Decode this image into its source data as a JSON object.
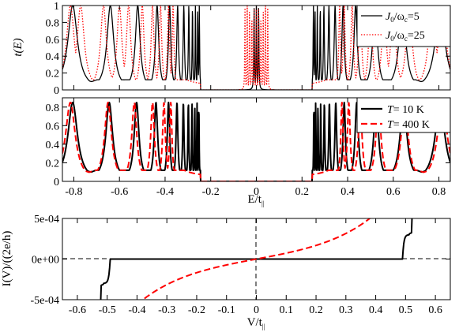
{
  "colors": {
    "black": "#000000",
    "red": "#ff0000",
    "dashed_red": "#ff0000",
    "background": "#ffffff"
  },
  "chart_data": [
    {
      "type": "line",
      "id": "top",
      "xlim": [
        -0.85,
        0.85
      ],
      "ylim": [
        0,
        1
      ],
      "yticks": [
        "0",
        "0.2",
        "0.4",
        "0.6",
        "0.8",
        "1"
      ],
      "ylabel": "t(E)",
      "xlabel": "",
      "legend": {
        "placement": "top-right"
      },
      "series": [
        {
          "name": "J0/ωc=5",
          "legend_label": {
            "pre": "J",
            "sub1": "0",
            "mid": "/ω",
            "sub2": "c",
            "post": "=5"
          },
          "style": "solid",
          "color": "#000000",
          "band_peaks": [
            -0.805,
            -0.64,
            -0.52,
            -0.435,
            -0.38,
            -0.345,
            -0.318,
            -0.296,
            -0.28,
            -0.267,
            -0.257,
            -0.25,
            0.25,
            0.257,
            0.267,
            0.28,
            0.296,
            0.318,
            0.345,
            0.38,
            0.435,
            0.52,
            0.64,
            0.805
          ],
          "central_peaks": [
            -0.01,
            0.0,
            0.01
          ],
          "peak_max": 1.0
        },
        {
          "name": "J0/ωc=25",
          "legend_label": {
            "pre": "J",
            "sub1": "0",
            "mid": "/ω",
            "sub2": "c",
            "post": "=25"
          },
          "style": "dotted",
          "color": "#ff0000",
          "band_peaks": [
            -0.815,
            -0.77,
            -0.67,
            -0.6,
            -0.56,
            -0.5,
            -0.455,
            -0.42,
            -0.385,
            -0.365,
            0.365,
            0.385,
            0.42,
            0.455,
            0.5,
            0.56,
            0.6,
            0.67,
            0.77,
            0.815
          ],
          "central_peaks": [
            -0.05,
            -0.04,
            -0.03,
            -0.02,
            -0.01,
            0.0,
            0.01,
            0.02,
            0.03,
            0.04,
            0.05
          ],
          "peak_max": 1.0
        }
      ]
    },
    {
      "type": "line",
      "id": "middle",
      "xlim": [
        -0.85,
        0.85
      ],
      "ylim": [
        0,
        0.9
      ],
      "xticks": [
        "-0.8",
        "-0.6",
        "-0.4",
        "-0.2",
        "0",
        "0.2",
        "0.4",
        "0.6",
        "0.8"
      ],
      "yticks": [
        "0",
        "0.2",
        "0.4",
        "0.6",
        "0.8"
      ],
      "xlabel": "E/t||",
      "xlabel_parts": {
        "main": "E/t",
        "sub": "||"
      },
      "ylabel": "",
      "legend": {
        "placement": "top-right"
      },
      "series": [
        {
          "name": "T= 10 K",
          "legend_label": {
            "italic": "T",
            "rest": "= 10  K"
          },
          "style": "solid",
          "color": "#000000",
          "band_peaks": [
            -0.805,
            -0.645,
            -0.525,
            -0.44,
            -0.385,
            -0.348,
            -0.32,
            -0.298,
            -0.282,
            -0.27,
            -0.26,
            -0.252,
            0.252,
            0.26,
            0.27,
            0.282,
            0.298,
            0.32,
            0.348,
            0.385,
            0.44,
            0.525,
            0.645,
            0.805
          ],
          "peak_max": 0.85
        },
        {
          "name": "T= 400 K",
          "legend_label": {
            "italic": "T",
            "rest": "= 400 K"
          },
          "style": "dashed",
          "color": "#ff0000",
          "band_peaks": [
            -0.815,
            -0.65,
            -0.535,
            -0.455,
            -0.405,
            -0.375,
            0.375,
            0.405,
            0.455,
            0.535,
            0.65,
            0.815
          ],
          "peak_max": 0.85
        }
      ]
    },
    {
      "type": "line",
      "id": "bottom",
      "xlim": [
        -0.65,
        0.65
      ],
      "ylim": [
        -0.0005,
        0.0005
      ],
      "xticks": [
        "-0.6",
        "-0.5",
        "-0.4",
        "-0.3",
        "-0.2",
        "-0.1",
        "0",
        "0.1",
        "0.2",
        "0.3",
        "0.4",
        "0.5",
        "0.6"
      ],
      "yticks": [
        "-5e-04",
        "0e+00",
        "5e-04"
      ],
      "xlabel": "V/t||",
      "xlabel_parts": {
        "main": "V/t",
        "sub": "||"
      },
      "ylabel": "I(V)/((2e/h)",
      "series": [
        {
          "name": "",
          "style": "solid",
          "color": "#000000",
          "x": [
            -0.535,
            -0.53,
            -0.525,
            -0.52,
            -0.515,
            -0.51,
            -0.505,
            -0.5,
            -0.495,
            -0.49,
            0.49,
            0.495,
            0.5,
            0.505,
            0.51,
            0.515,
            0.52,
            0.525,
            0.53,
            0.535
          ],
          "y": [
            -0.0005,
            -0.00042,
            -0.00032,
            -0.00031,
            -0.0003,
            -0.00022,
            -9e-05,
            -1e-05,
            0.0,
            0.0,
            0.0,
            0.0,
            1e-05,
            9e-05,
            0.00022,
            0.0003,
            0.00031,
            0.00032,
            0.00042,
            0.0005
          ]
        },
        {
          "name": "",
          "style": "dashed",
          "color": "#ff0000",
          "x": [
            -0.38,
            -0.35,
            -0.3,
            -0.25,
            -0.2,
            -0.15,
            -0.1,
            -0.05,
            0.0,
            0.05,
            0.1,
            0.15,
            0.2,
            0.25,
            0.3,
            0.35,
            0.38
          ],
          "y": [
            -0.0005,
            -0.00043,
            -0.00032,
            -0.00022,
            -0.00014,
            -8.5e-05,
            -5e-05,
            -2e-05,
            0.0,
            2e-05,
            5e-05,
            8.5e-05,
            0.00014,
            0.00022,
            0.00032,
            0.00043,
            0.0005
          ]
        }
      ]
    }
  ]
}
